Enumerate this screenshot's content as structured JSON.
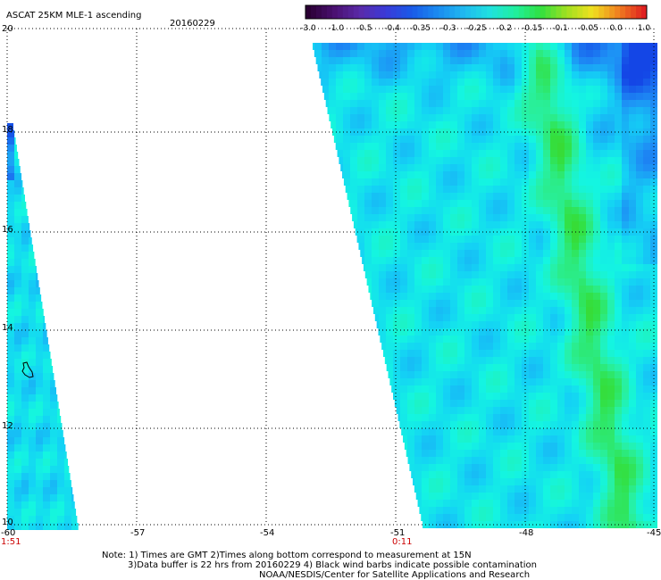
{
  "header": {
    "title": "ASCAT 25KM MLE-1 ascending",
    "date": "20160229"
  },
  "colorbar": {
    "labels": [
      "-3.0",
      "-1.0",
      "-0.5",
      "-0.4",
      "-0.35",
      "-0.3",
      "-0.25",
      "-0.2",
      "-0.15",
      "-0.1",
      "-0.05",
      "0.0",
      "1.0"
    ],
    "colors": [
      "#2a0033",
      "#4a1070",
      "#5a2aa8",
      "#3a3ad8",
      "#1a5ae8",
      "#1a8af0",
      "#20b8f0",
      "#20e0e0",
      "#20f0a0",
      "#30e040",
      "#a0e020",
      "#f0e020",
      "#f08020",
      "#e02020"
    ]
  },
  "axes": {
    "lon_labels": [
      "-60",
      "-57",
      "-54",
      "-51",
      "-48",
      "-45"
    ],
    "lat_labels": [
      "20",
      "18",
      "16",
      "14",
      "12",
      "10"
    ],
    "time_labels": [
      "1:51",
      "0:11"
    ]
  },
  "notes": {
    "line1": "Note: 1) Times are GMT 2)Times along bottom correspond to measurement at 15N",
    "line2": "3)Data buffer is 22 hrs from 20160229 4) Black wind barbs indicate possible contamination",
    "line3": "NOAA/NESDIS/Center for Satellite Applications and Research"
  }
}
